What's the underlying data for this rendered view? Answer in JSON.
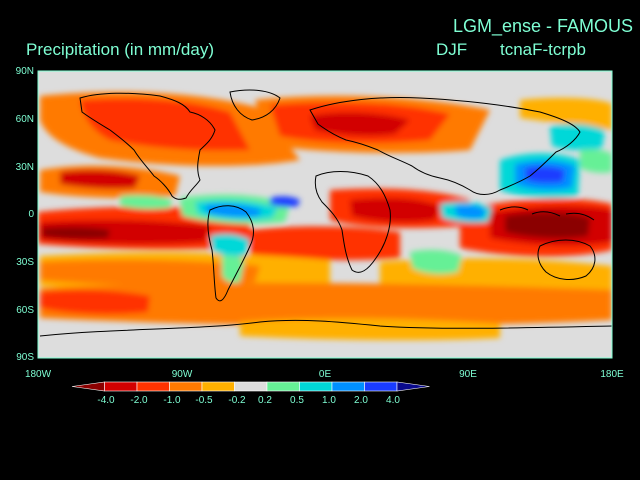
{
  "header": {
    "experiment": "LGM_ense - FAMOUS",
    "variable": "Precipitation (in mm/day)",
    "season": "DJF",
    "run": "tcnaF-tcrpb"
  },
  "axes": {
    "lat_labels": [
      "90N",
      "60N",
      "30N",
      "0",
      "30S",
      "60S",
      "90S"
    ],
    "lon_labels": [
      "180W",
      "90W",
      "0E",
      "90E",
      "180E"
    ]
  },
  "colorbar": {
    "ticks": [
      "-4.0",
      "-2.0",
      "-1.0",
      "-0.5",
      "-0.2",
      "0.2",
      "0.5",
      "1.0",
      "2.0",
      "4.0"
    ],
    "colors": [
      "#8b0000",
      "#d20000",
      "#ff3300",
      "#ff7a00",
      "#ffb000",
      "#dddddd",
      "#66f096",
      "#00d8d8",
      "#0090ff",
      "#1a3cff",
      "#0a0a8c"
    ]
  },
  "map_data": {
    "type": "filled-contour",
    "units": "mm/day",
    "lat_range": [
      -90,
      90
    ],
    "lon_range": [
      -180,
      180
    ],
    "background": "#dddddd",
    "coast": "black"
  }
}
